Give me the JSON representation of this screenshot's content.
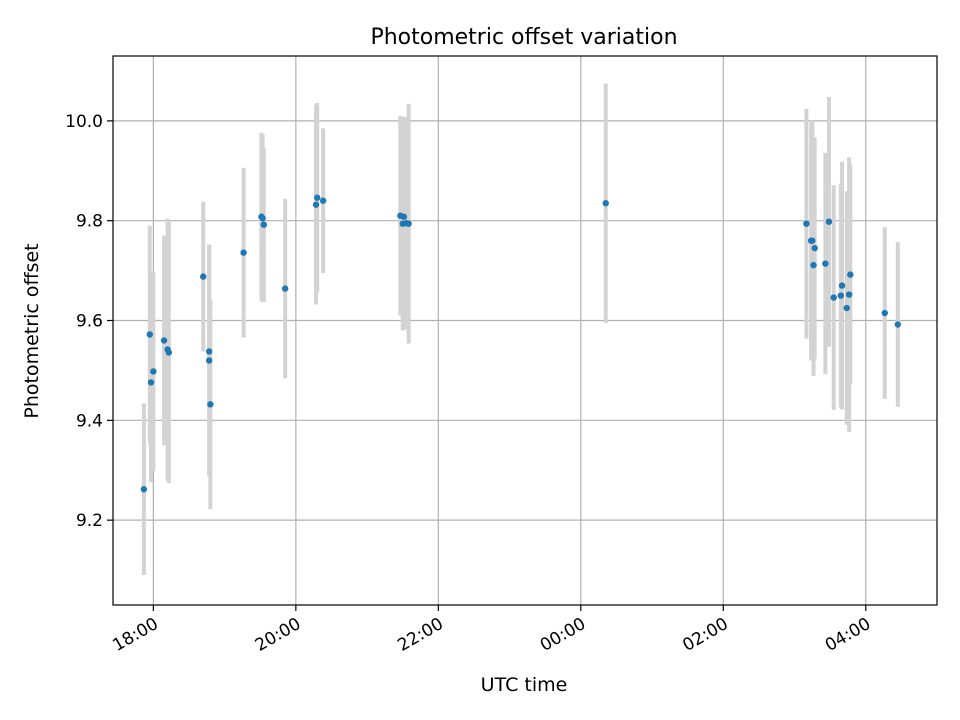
{
  "chart_data": {
    "type": "scatter",
    "title": "Photometric offset variation",
    "xlabel": "UTC time",
    "ylabel": "Photometric offset",
    "xlim": [
      "17:26",
      "05:00"
    ],
    "ylim": [
      9.03,
      10.13
    ],
    "x_ticks": [
      "18:00",
      "20:00",
      "22:00",
      "00:00",
      "02:00",
      "04:00"
    ],
    "y_ticks": [
      9.2,
      9.4,
      9.6,
      9.8,
      10.0
    ],
    "y_tick_labels": [
      "9.2",
      "9.4",
      "9.6",
      "9.8",
      "10.0"
    ],
    "grid": true,
    "colors": {
      "point": "#1f77b4",
      "errorbar": "#d3d3d3",
      "grid": "#b0b0b0"
    },
    "points": [
      {
        "x": "17:52",
        "y": 9.262,
        "err": 0.172
      },
      {
        "x": "17:57",
        "y": 9.572,
        "err": 0.218
      },
      {
        "x": "17:58",
        "y": 9.476,
        "err": 0.2
      },
      {
        "x": "18:00",
        "y": 9.498,
        "err": 0.2
      },
      {
        "x": "18:09",
        "y": 9.56,
        "err": 0.21
      },
      {
        "x": "18:12",
        "y": 9.542,
        "err": 0.262
      },
      {
        "x": "18:13",
        "y": 9.536,
        "err": 0.262
      },
      {
        "x": "18:42",
        "y": 9.688,
        "err": 0.15
      },
      {
        "x": "18:47",
        "y": 9.538,
        "err": 0.213
      },
      {
        "x": "18:47",
        "y": 9.52,
        "err": 0.232
      },
      {
        "x": "18:48",
        "y": 9.432,
        "err": 0.21
      },
      {
        "x": "19:16",
        "y": 9.736,
        "err": 0.17
      },
      {
        "x": "19:31",
        "y": 9.808,
        "err": 0.168
      },
      {
        "x": "19:32",
        "y": 9.805,
        "err": 0.168
      },
      {
        "x": "19:33",
        "y": 9.792,
        "err": 0.155
      },
      {
        "x": "19:51",
        "y": 9.664,
        "err": 0.18
      },
      {
        "x": "20:17",
        "y": 9.832,
        "err": 0.2
      },
      {
        "x": "20:18",
        "y": 9.846,
        "err": 0.19
      },
      {
        "x": "20:23",
        "y": 9.84,
        "err": 0.145
      },
      {
        "x": "21:28",
        "y": 9.81,
        "err": 0.2
      },
      {
        "x": "21:30",
        "y": 9.794,
        "err": 0.214
      },
      {
        "x": "21:31",
        "y": 9.808,
        "err": 0.2
      },
      {
        "x": "21:33",
        "y": 9.795,
        "err": 0.213
      },
      {
        "x": "21:35",
        "y": 9.794,
        "err": 0.24
      },
      {
        "x": "00:21",
        "y": 9.835,
        "err": 0.24
      },
      {
        "x": "03:10",
        "y": 9.794,
        "err": 0.23
      },
      {
        "x": "03:14",
        "y": 9.76,
        "err": 0.24
      },
      {
        "x": "03:15",
        "y": 9.76,
        "err": 0.24
      },
      {
        "x": "03:16",
        "y": 9.711,
        "err": 0.222
      },
      {
        "x": "03:17",
        "y": 9.745,
        "err": 0.222
      },
      {
        "x": "03:26",
        "y": 9.714,
        "err": 0.222
      },
      {
        "x": "03:29",
        "y": 9.798,
        "err": 0.25
      },
      {
        "x": "03:33",
        "y": 9.646,
        "err": 0.225
      },
      {
        "x": "03:39",
        "y": 9.65,
        "err": 0.224
      },
      {
        "x": "03:40",
        "y": 9.67,
        "err": 0.248
      },
      {
        "x": "03:44",
        "y": 9.625,
        "err": 0.234
      },
      {
        "x": "03:46",
        "y": 9.652,
        "err": 0.275
      },
      {
        "x": "03:47",
        "y": 9.692,
        "err": 0.22
      },
      {
        "x": "04:16",
        "y": 9.615,
        "err": 0.172
      },
      {
        "x": "04:27",
        "y": 9.592,
        "err": 0.165
      }
    ]
  }
}
